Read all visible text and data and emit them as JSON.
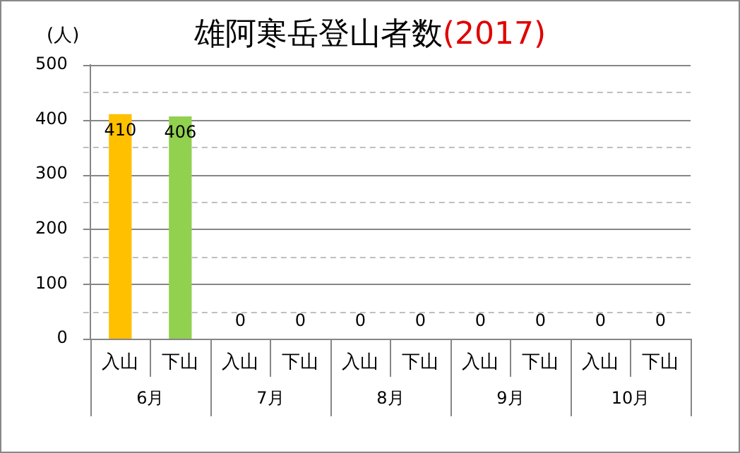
{
  "chart_data": {
    "type": "bar",
    "title": "雄阿寒岳登山者数(2017)",
    "ylabel": "(人)",
    "categories": [
      "入山",
      "下山",
      "入山",
      "下山",
      "入山",
      "下山",
      "入山",
      "下山",
      "入山",
      "下山"
    ],
    "values": [
      410,
      406,
      0,
      0,
      0,
      0,
      0,
      0,
      0,
      0
    ],
    "colors": [
      "#ffc000",
      "#92d050",
      "#ffc000",
      "#92d050",
      "#ffc000",
      "#92d050",
      "#ffc000",
      "#92d050",
      "#ffc000",
      "#92d050"
    ],
    "annotations": [
      "6月",
      "7月",
      "8月",
      "9月",
      "10月"
    ],
    "ylim": [
      0,
      500
    ],
    "yticks": [
      0,
      {
        "value": 50,
        "label": null
      },
      100,
      {
        "value": 150,
        "label": null
      },
      200,
      {
        "value": 250,
        "label": null
      },
      300,
      {
        "value": 350,
        "label": null
      },
      400,
      {
        "value": 450,
        "label": null
      },
      500
    ],
    "grid": true,
    "data_labels": true,
    "legend": false
  }
}
